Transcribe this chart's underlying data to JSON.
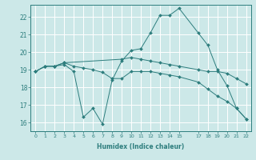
{
  "xlabel": "Humidex (Indice chaleur)",
  "bg_color": "#cce8e8",
  "line_color": "#2d7d7d",
  "grid_color": "#ffffff",
  "xlim": [
    -0.5,
    22.5
  ],
  "ylim": [
    15.5,
    22.7
  ],
  "yticks": [
    16,
    17,
    18,
    19,
    20,
    21,
    22
  ],
  "xticks": [
    0,
    1,
    2,
    3,
    4,
    5,
    6,
    7,
    8,
    9,
    10,
    11,
    12,
    13,
    14,
    15,
    17,
    18,
    19,
    20,
    21,
    22
  ],
  "series": [
    {
      "x": [
        0,
        1,
        2,
        3,
        4,
        5,
        6,
        7,
        8,
        9,
        10,
        11,
        12,
        13,
        14,
        15,
        17,
        18,
        19,
        20,
        21,
        22
      ],
      "y": [
        18.9,
        19.2,
        19.2,
        19.3,
        18.9,
        16.3,
        16.8,
        15.9,
        18.4,
        19.5,
        20.1,
        20.2,
        21.1,
        22.1,
        22.1,
        22.5,
        21.1,
        20.4,
        19.0,
        18.1,
        16.8,
        16.2
      ]
    },
    {
      "x": [
        0,
        1,
        2,
        3,
        4,
        5,
        6,
        7,
        8,
        9,
        10,
        11,
        12,
        13,
        14,
        15,
        17,
        18,
        19,
        20,
        21,
        22
      ],
      "y": [
        18.9,
        19.2,
        19.2,
        19.4,
        19.2,
        19.1,
        19.0,
        18.85,
        18.5,
        18.5,
        18.9,
        18.9,
        18.9,
        18.8,
        18.7,
        18.6,
        18.3,
        17.9,
        17.5,
        17.2,
        16.8,
        16.2
      ]
    },
    {
      "x": [
        0,
        1,
        2,
        3,
        9,
        10,
        11,
        12,
        13,
        14,
        15,
        17,
        18,
        19,
        20,
        21,
        22
      ],
      "y": [
        18.9,
        19.2,
        19.2,
        19.4,
        19.6,
        19.7,
        19.6,
        19.5,
        19.4,
        19.3,
        19.2,
        19.0,
        18.9,
        18.9,
        18.8,
        18.5,
        18.2
      ]
    }
  ]
}
